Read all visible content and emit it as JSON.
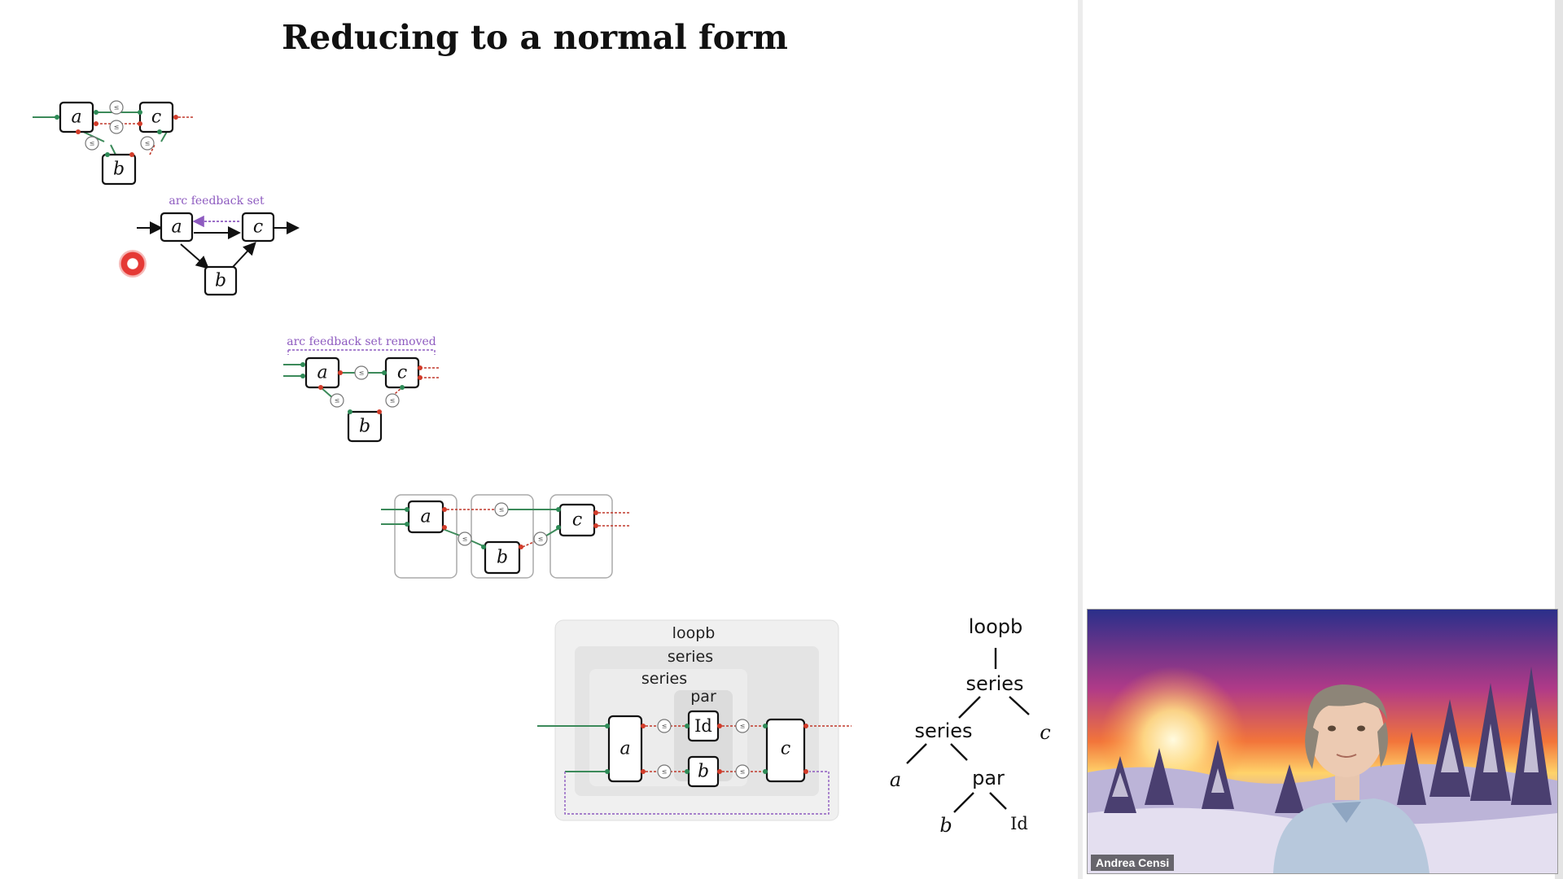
{
  "slide": {
    "title": "Reducing to a normal form"
  },
  "diagrams": {
    "nodes": {
      "a": "a",
      "b": "b",
      "c": "c",
      "id": "Id"
    },
    "caption_feedback": "arc feedback set",
    "caption_removed": "arc feedback set removed",
    "annotated": {
      "loop": "loopb",
      "series_outer": "series",
      "series_inner": "series",
      "par": "par"
    }
  },
  "tree": {
    "root": "loopb",
    "series1": "series",
    "series2": "series",
    "par": "par",
    "leaf_a": "a",
    "leaf_b": "b",
    "leaf_c": "c",
    "leaf_id": "Id"
  },
  "video": {
    "participant_name": "Andrea Censi"
  },
  "colors": {
    "green_wire": "#3c8a5a",
    "red_port": "#d23c2a",
    "purple_text": "#8e5bc0"
  }
}
